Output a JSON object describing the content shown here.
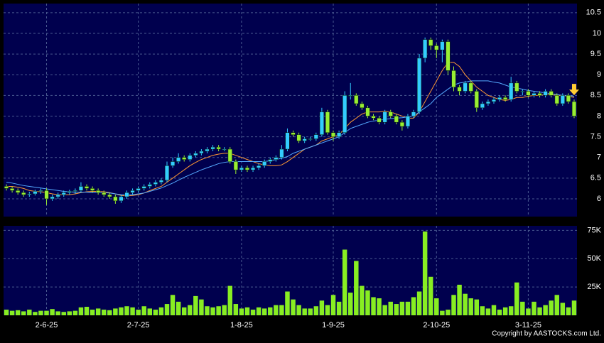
{
  "chart_data": [
    {
      "type": "candlestick",
      "xlim": [
        -0.5,
        99.5
      ],
      "ylim": [
        5.57,
        10.72
      ],
      "yticks": [
        6,
        6.5,
        7,
        7.5,
        8,
        8.5,
        9,
        9.5,
        10,
        10.5
      ],
      "grid": true,
      "up_color": "#33ccff",
      "down_color": "#99ee33",
      "open": [
        6.3,
        6.25,
        6.2,
        6.15,
        6.1,
        6.12,
        6.18,
        6.2,
        6.0,
        6.05,
        6.1,
        6.15,
        6.18,
        6.2,
        6.3,
        6.25,
        6.2,
        6.15,
        6.1,
        6.05,
        5.95,
        6.05,
        6.15,
        6.2,
        6.25,
        6.3,
        6.35,
        6.4,
        6.45,
        6.8,
        6.9,
        7.0,
        6.95,
        7.05,
        7.1,
        7.15,
        7.2,
        7.25,
        7.2,
        7.2,
        6.9,
        6.7,
        6.75,
        6.7,
        6.75,
        6.8,
        6.9,
        6.95,
        7.0,
        7.2,
        7.6,
        7.55,
        7.4,
        7.45,
        7.45,
        7.55,
        8.1,
        7.6,
        7.5,
        7.6,
        8.5,
        8.5,
        8.3,
        8.2,
        8.0,
        7.95,
        7.85,
        8.1,
        8.0,
        7.85,
        7.75,
        8.0,
        8.1,
        9.4,
        9.85,
        9.7,
        9.6,
        9.8,
        9.1,
        8.7,
        8.6,
        8.8,
        8.6,
        8.2,
        8.3,
        8.35,
        8.4,
        8.45,
        8.4,
        8.8,
        8.6,
        8.6,
        8.5,
        8.55,
        8.5,
        8.6,
        8.5,
        8.3,
        8.5,
        8.35
      ],
      "high": [
        6.35,
        6.3,
        6.25,
        6.2,
        6.17,
        6.22,
        6.25,
        6.25,
        6.1,
        6.15,
        6.2,
        6.22,
        6.25,
        6.4,
        6.35,
        6.3,
        6.25,
        6.2,
        6.15,
        6.1,
        6.1,
        6.2,
        6.25,
        6.3,
        6.35,
        6.4,
        6.45,
        6.5,
        6.9,
        7.0,
        7.1,
        7.05,
        7.1,
        7.15,
        7.2,
        7.25,
        7.3,
        7.3,
        7.25,
        7.25,
        6.95,
        6.8,
        6.8,
        6.8,
        6.85,
        6.95,
        7.0,
        7.05,
        7.3,
        7.7,
        7.65,
        7.6,
        7.5,
        7.5,
        7.6,
        8.2,
        8.15,
        7.65,
        7.65,
        8.6,
        8.8,
        8.55,
        8.35,
        8.25,
        8.05,
        8.0,
        8.15,
        8.15,
        8.05,
        7.9,
        8.05,
        8.15,
        9.5,
        9.9,
        9.9,
        9.75,
        9.85,
        9.85,
        9.2,
        8.75,
        8.85,
        8.85,
        8.65,
        8.35,
        8.4,
        8.45,
        8.5,
        8.5,
        8.95,
        8.85,
        8.65,
        8.65,
        8.6,
        8.6,
        8.65,
        8.65,
        8.55,
        8.55,
        8.55,
        8.4
      ],
      "low": [
        6.2,
        6.15,
        6.1,
        6.05,
        6.05,
        6.08,
        6.12,
        5.85,
        5.95,
        6.0,
        6.05,
        6.1,
        6.12,
        6.15,
        6.2,
        6.15,
        6.1,
        6.05,
        6.0,
        5.88,
        5.9,
        6.0,
        6.1,
        6.15,
        6.2,
        6.25,
        6.3,
        6.35,
        6.4,
        6.75,
        6.85,
        6.9,
        6.9,
        7.0,
        7.05,
        7.1,
        7.15,
        7.15,
        7.15,
        6.85,
        6.6,
        6.65,
        6.65,
        6.65,
        6.7,
        6.75,
        6.85,
        6.9,
        6.95,
        7.15,
        7.5,
        7.35,
        7.35,
        7.4,
        7.4,
        7.5,
        7.55,
        7.4,
        7.45,
        7.55,
        8.4,
        8.25,
        8.15,
        7.95,
        7.9,
        7.8,
        7.8,
        7.95,
        7.8,
        7.65,
        7.7,
        7.95,
        8.05,
        9.3,
        9.6,
        9.4,
        9.3,
        9.0,
        8.6,
        8.5,
        8.55,
        8.55,
        8.1,
        8.15,
        8.25,
        8.3,
        8.35,
        8.35,
        8.35,
        8.55,
        8.5,
        8.45,
        8.45,
        8.45,
        8.45,
        8.45,
        8.25,
        8.25,
        8.3,
        7.95
      ],
      "close": [
        6.25,
        6.2,
        6.15,
        6.1,
        6.12,
        6.18,
        6.2,
        6.0,
        6.05,
        6.1,
        6.15,
        6.18,
        6.2,
        6.3,
        6.25,
        6.2,
        6.15,
        6.1,
        6.05,
        5.95,
        6.05,
        6.15,
        6.2,
        6.25,
        6.3,
        6.35,
        6.4,
        6.45,
        6.8,
        6.9,
        7.0,
        6.95,
        7.05,
        7.1,
        7.15,
        7.2,
        7.25,
        7.2,
        7.2,
        6.9,
        6.7,
        6.75,
        6.7,
        6.75,
        6.8,
        6.9,
        6.95,
        7.0,
        7.2,
        7.6,
        7.55,
        7.4,
        7.45,
        7.45,
        7.55,
        8.1,
        7.6,
        7.5,
        7.6,
        8.5,
        8.5,
        8.3,
        8.2,
        8.0,
        7.95,
        7.85,
        8.1,
        8.0,
        7.85,
        7.75,
        8.0,
        8.1,
        9.4,
        9.85,
        9.7,
        9.6,
        9.8,
        9.1,
        8.7,
        8.6,
        8.8,
        8.6,
        8.2,
        8.3,
        8.35,
        8.4,
        8.45,
        8.4,
        8.8,
        8.6,
        8.6,
        8.5,
        8.55,
        8.5,
        8.6,
        8.5,
        8.3,
        8.5,
        8.35,
        8.0
      ],
      "ma": [
        {
          "color": "#ff9933",
          "values": [
            6.3,
            6.3,
            6.28,
            6.25,
            6.2,
            6.18,
            6.17,
            6.15,
            6.12,
            6.1,
            6.1,
            6.1,
            6.12,
            6.15,
            6.17,
            6.18,
            6.18,
            6.17,
            6.15,
            6.12,
            6.08,
            6.07,
            6.08,
            6.1,
            6.14,
            6.2,
            6.25,
            6.3,
            6.4,
            6.5,
            6.6,
            6.7,
            6.8,
            6.88,
            6.95,
            7.0,
            7.05,
            7.08,
            7.1,
            7.1,
            7.05,
            7.0,
            6.95,
            6.9,
            6.85,
            6.82,
            6.8,
            6.8,
            6.82,
            6.9,
            7.0,
            7.1,
            7.2,
            7.25,
            7.3,
            7.4,
            7.45,
            7.5,
            7.55,
            7.7,
            7.85,
            7.95,
            8.05,
            8.1,
            8.1,
            8.1,
            8.12,
            8.1,
            8.05,
            8.0,
            7.95,
            7.95,
            8.1,
            8.35,
            8.6,
            8.85,
            9.1,
            9.3,
            9.3,
            9.2,
            9.0,
            8.85,
            8.7,
            8.6,
            8.5,
            8.45,
            8.4,
            8.38,
            8.4,
            8.45,
            8.45,
            8.48,
            8.5,
            8.5,
            8.52,
            8.52,
            8.5,
            8.5,
            8.48,
            8.45
          ]
        },
        {
          "color": "#55aaff",
          "values": [
            6.4,
            6.38,
            6.35,
            6.32,
            6.3,
            6.28,
            6.26,
            6.24,
            6.22,
            6.2,
            6.18,
            6.17,
            6.16,
            6.16,
            6.16,
            6.15,
            6.15,
            6.15,
            6.14,
            6.12,
            6.1,
            6.1,
            6.1,
            6.12,
            6.14,
            6.18,
            6.22,
            6.26,
            6.32,
            6.38,
            6.45,
            6.52,
            6.58,
            6.64,
            6.7,
            6.75,
            6.8,
            6.85,
            6.88,
            6.9,
            6.9,
            6.9,
            6.9,
            6.9,
            6.9,
            6.9,
            6.92,
            6.95,
            6.98,
            7.02,
            7.1,
            7.15,
            7.2,
            7.25,
            7.3,
            7.35,
            7.4,
            7.45,
            7.5,
            7.6,
            7.7,
            7.75,
            7.8,
            7.85,
            7.88,
            7.9,
            7.92,
            7.94,
            7.95,
            7.96,
            7.98,
            8.0,
            8.1,
            8.2,
            8.3,
            8.45,
            8.55,
            8.65,
            8.75,
            8.8,
            8.82,
            8.85,
            8.85,
            8.85,
            8.85,
            8.82,
            8.8,
            8.75,
            8.7,
            8.68,
            8.65,
            8.62,
            8.6,
            8.58,
            8.56,
            8.54,
            8.52,
            8.5,
            8.5,
            8.48
          ]
        }
      ]
    },
    {
      "type": "bar",
      "xlim": [
        -0.5,
        99.5
      ],
      "ylim": [
        0,
        79000
      ],
      "yticks": [
        {
          "value": 25000,
          "label": "25K"
        },
        {
          "value": 50000,
          "label": "50K"
        },
        {
          "value": 75000,
          "label": "75K"
        }
      ],
      "xticks": [
        {
          "value": 7,
          "label": "2-6-25"
        },
        {
          "value": 23,
          "label": "2-7-25"
        },
        {
          "value": 41,
          "label": "1-8-25"
        },
        {
          "value": 57,
          "label": "1-9-25"
        },
        {
          "value": 75,
          "label": "2-10-25"
        },
        {
          "value": 91,
          "label": "3-11-25"
        }
      ],
      "grid": true,
      "color": "#88ee22",
      "values": [
        5000,
        4000,
        4500,
        3500,
        5000,
        3000,
        4000,
        4000,
        5500,
        3500,
        3000,
        3500,
        4000,
        7000,
        7500,
        5000,
        6000,
        5000,
        4500,
        6000,
        7000,
        8000,
        7000,
        5000,
        8000,
        6000,
        5000,
        7000,
        10000,
        18000,
        12000,
        7000,
        9000,
        17000,
        14000,
        8000,
        7000,
        8000,
        9000,
        26000,
        10000,
        6000,
        7000,
        5000,
        7000,
        6000,
        7000,
        9000,
        9000,
        21000,
        14000,
        9000,
        6000,
        6000,
        8000,
        13000,
        9000,
        18000,
        12000,
        58000,
        20000,
        48000,
        26000,
        22000,
        16000,
        15000,
        9000,
        12000,
        10000,
        12000,
        12000,
        16000,
        21000,
        74000,
        34000,
        15000,
        4000,
        5000,
        18000,
        27000,
        19000,
        15000,
        14000,
        8000,
        6000,
        9000,
        5000,
        7000,
        8000,
        29000,
        12000,
        6000,
        12000,
        7000,
        9000,
        13000,
        18000,
        11000,
        7000,
        13000
      ]
    }
  ],
  "copyright": "Copyright by AASTOCKS.com Ltd."
}
